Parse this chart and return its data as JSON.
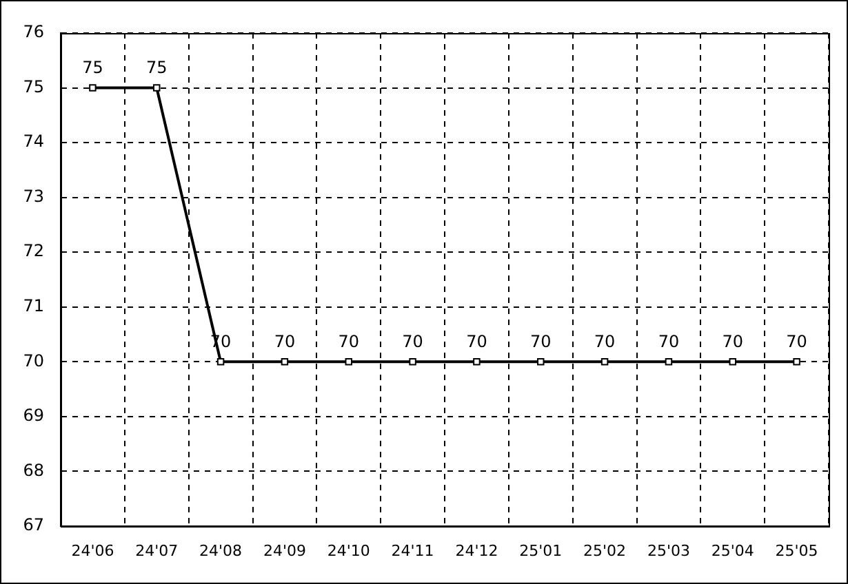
{
  "chart_data": {
    "type": "line",
    "categories": [
      "24'06",
      "24'07",
      "24'08",
      "24'09",
      "24'10",
      "24'11",
      "24'12",
      "25'01",
      "25'02",
      "25'03",
      "25'04",
      "25'05"
    ],
    "series": [
      {
        "color": "#000000",
        "values": [
          75,
          75,
          70,
          70,
          70,
          70,
          70,
          70,
          70,
          70,
          70,
          70
        ]
      }
    ],
    "ylim": [
      67,
      76
    ],
    "yticks": [
      67,
      68,
      69,
      70,
      71,
      72,
      73,
      74,
      75,
      76
    ],
    "grid": true,
    "legend": false,
    "marker": "square",
    "line_style": "solid",
    "data_labels": true
  }
}
